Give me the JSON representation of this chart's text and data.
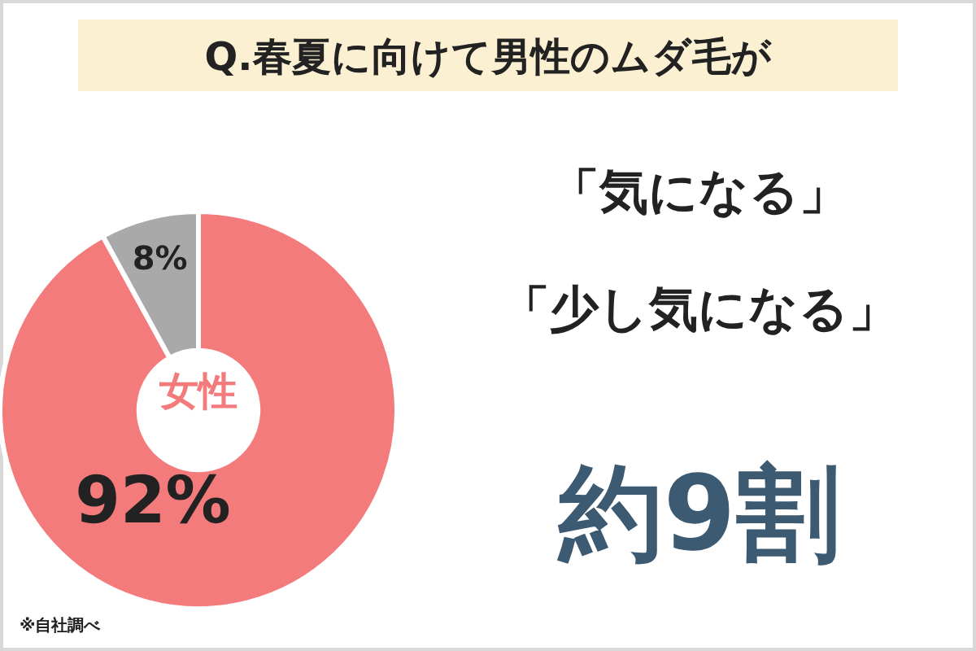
{
  "chart_data": {
    "type": "donut",
    "title": "Q.春夏に向けて男性のムダ毛が",
    "categories": [
      null,
      null
    ],
    "values": [
      92,
      8
    ],
    "colors": [
      "#f47b7b",
      "#a9a9a9"
    ],
    "value_labels": [
      "92%",
      "8%"
    ],
    "annotations": [
      "女性",
      "「気になる」",
      "「少し気になる」",
      "約9割",
      "※自社調べ"
    ]
  }
}
